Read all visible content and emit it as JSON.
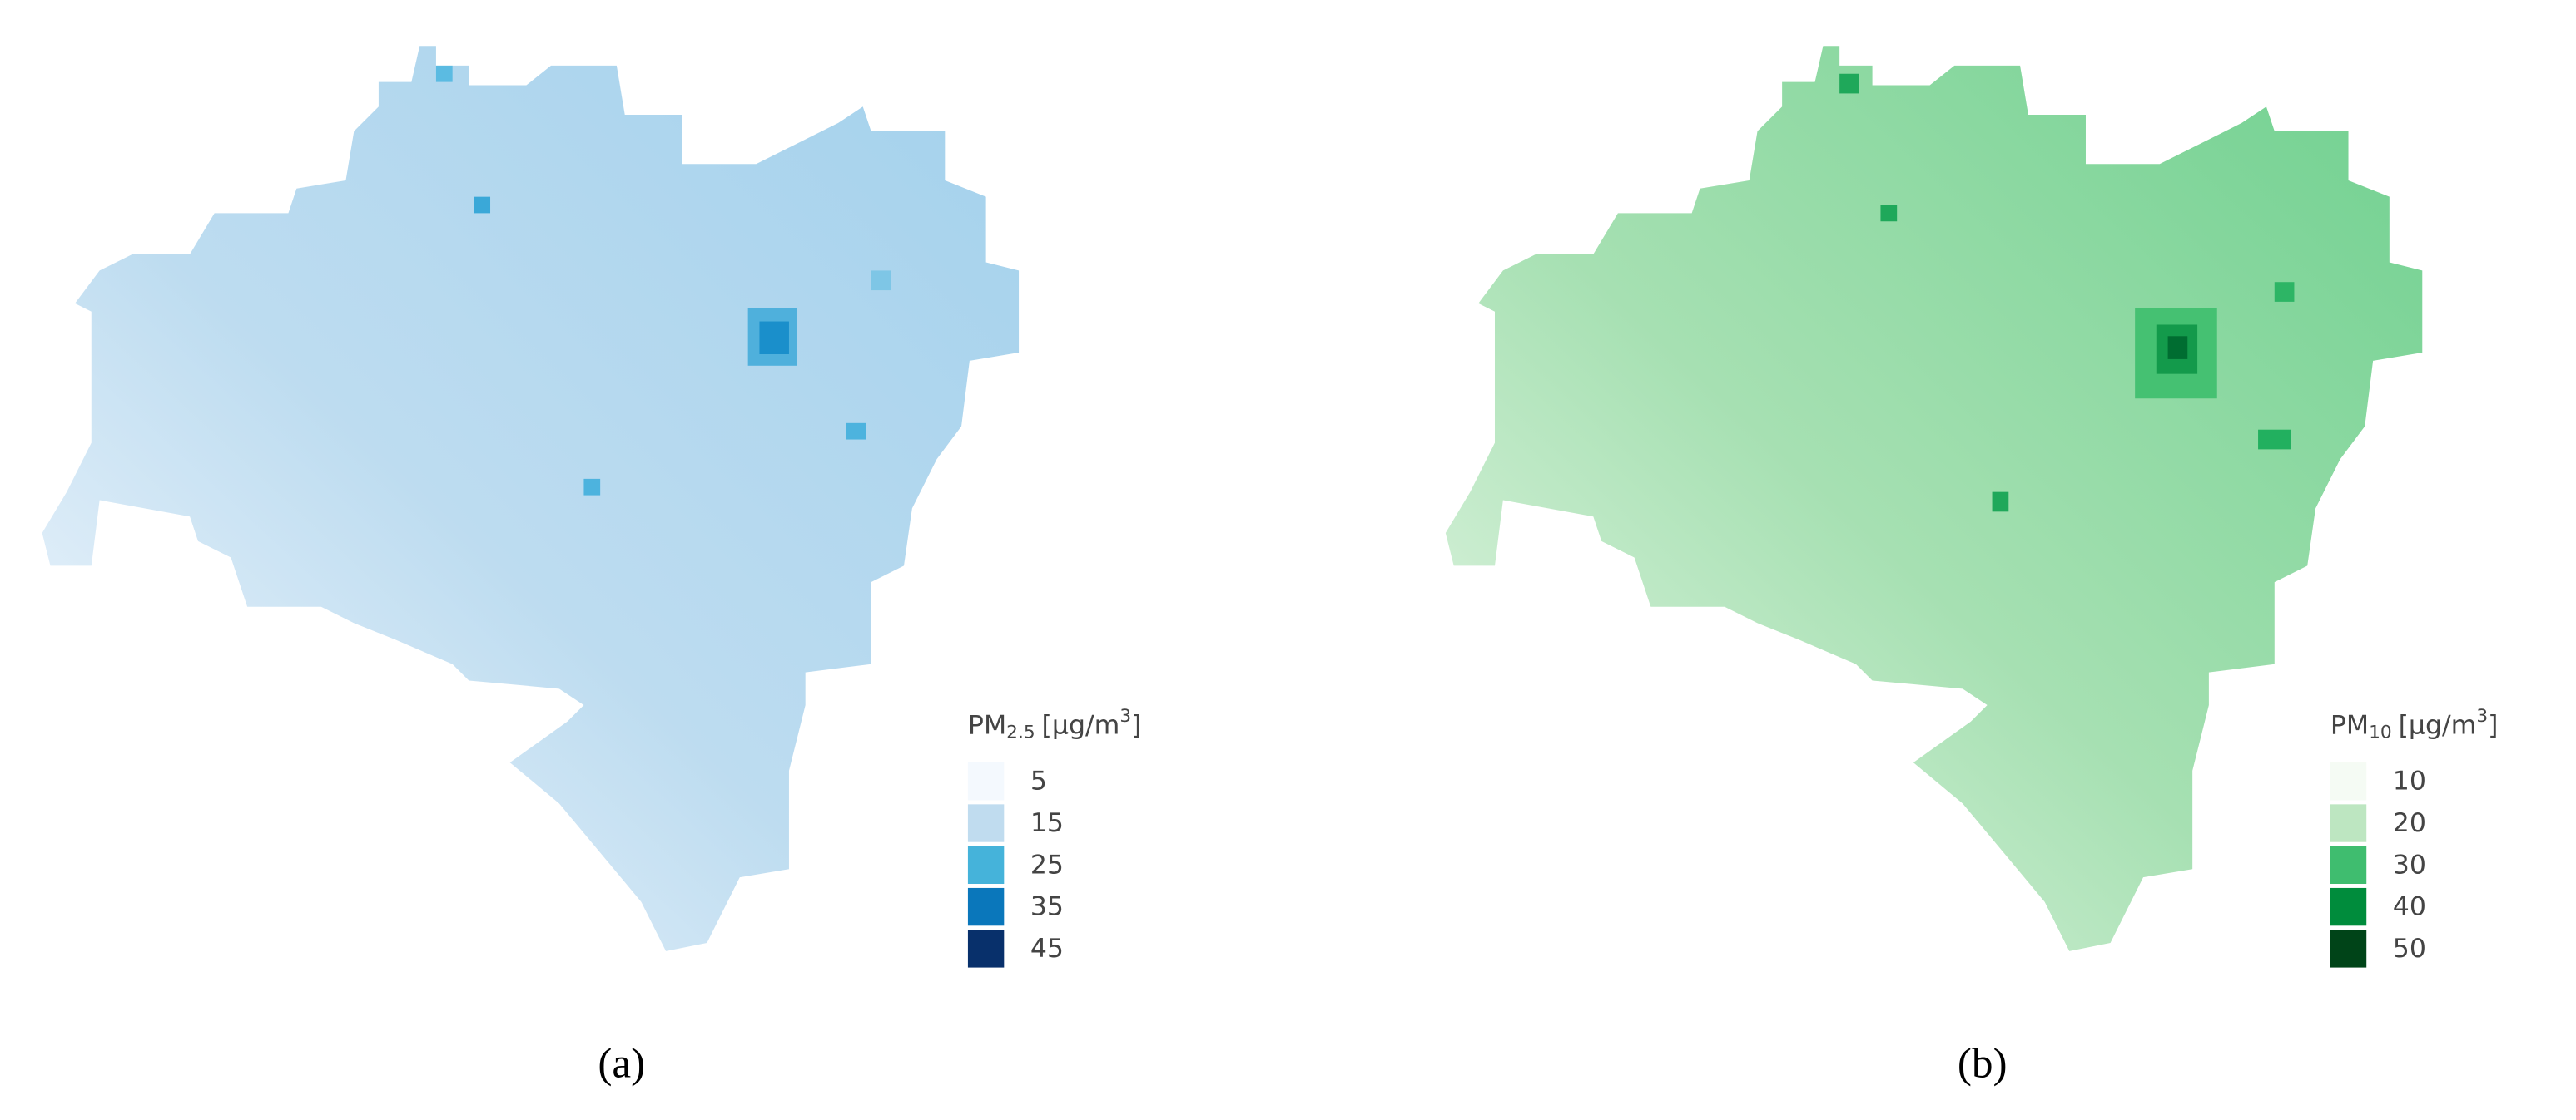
{
  "panels": [
    {
      "label": "(a)",
      "legend": {
        "title": "PM",
        "title_sub": "2.5",
        "title_unit": "[µg/m",
        "title_sup": "3",
        "title_end": "]",
        "items": [
          {
            "label": "5",
            "color": "#f4f9fe"
          },
          {
            "label": "15",
            "color": "#c0dcef"
          },
          {
            "label": "25",
            "color": "#45b3da"
          },
          {
            "label": "35",
            "color": "#0a77bb"
          },
          {
            "label": "45",
            "color": "#08306b"
          }
        ]
      }
    },
    {
      "label": "(b)",
      "legend": {
        "title": "PM",
        "title_sub": "10",
        "title_unit": "[µg/m",
        "title_sup": "3",
        "title_end": "]",
        "items": [
          {
            "label": "10",
            "color": "#f5fbf4"
          },
          {
            "label": "20",
            "color": "#bde6c1"
          },
          {
            "label": "30",
            "color": "#3fbd6f"
          },
          {
            "label": "40",
            "color": "#008c3c"
          },
          {
            "label": "50",
            "color": "#004418"
          }
        ]
      }
    }
  ]
}
